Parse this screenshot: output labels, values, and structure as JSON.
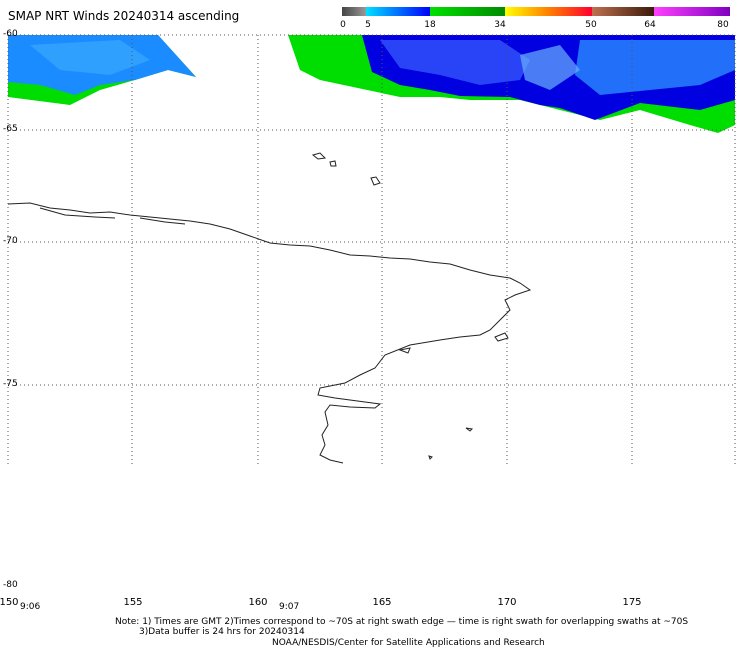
{
  "title": "SMAP NRT Winds 20240314 ascending",
  "colorbar": {
    "ticks": [
      "0",
      "5",
      "18",
      "34",
      "50",
      "64",
      "80"
    ],
    "colors": [
      "#555555",
      "#00bfff",
      "#00b000",
      "#ffd200",
      "#ff0000",
      "#8b4513",
      "#ff00ff"
    ]
  },
  "latitude_labels": [
    "-60",
    "-65",
    "-70",
    "-75",
    "-80"
  ],
  "longitude_labels": [
    "150",
    "155",
    "160",
    "165",
    "170",
    "175"
  ],
  "time_labels": [
    "9:06",
    "9:07"
  ],
  "notes": {
    "line1": "Note: 1) Times are GMT 2)Times correspond to ~70S at right swath edge — time is right swath for overlapping swaths at ~70S",
    "line2": "3)Data buffer is 24 hrs for 20240314",
    "line3": "NOAA/NESDIS/Center for Satellite Applications and Research"
  },
  "map_style": {
    "grid": "dotted",
    "coastline_color": "#000000",
    "wind_colors": {
      "low": "#1a8cff",
      "mid": "#0000e0",
      "green": "#00dd00"
    }
  }
}
